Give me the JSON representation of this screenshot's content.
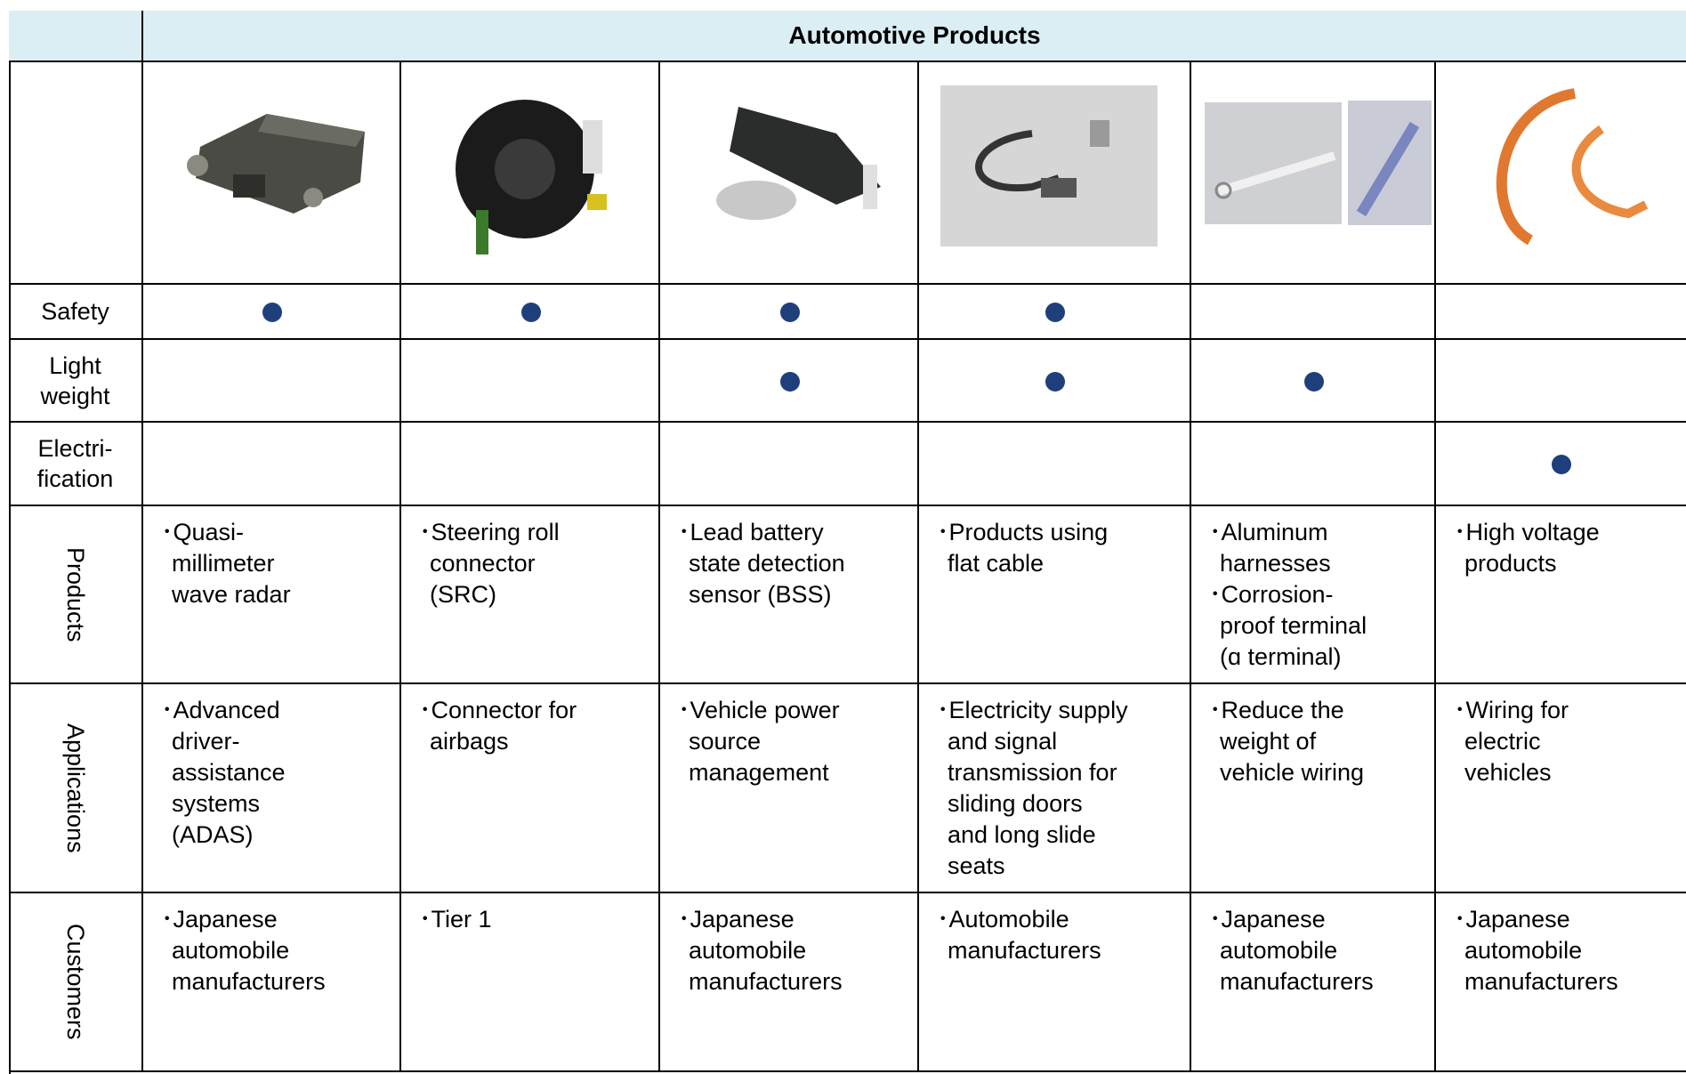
{
  "header": {
    "title": "Automotive Products"
  },
  "indicator_rows": [
    {
      "label": [
        "Safety"
      ],
      "marks": [
        true,
        true,
        true,
        true,
        false,
        false
      ]
    },
    {
      "label": [
        "Light",
        "weight"
      ],
      "marks": [
        false,
        false,
        true,
        true,
        true,
        false
      ]
    },
    {
      "label": [
        "Electri-",
        "fication"
      ],
      "marks": [
        false,
        false,
        false,
        false,
        false,
        true
      ]
    }
  ],
  "text_rows": [
    {
      "label": "Products",
      "cells": [
        [
          [
            "･Quasi-",
            "millimeter",
            "wave radar"
          ]
        ],
        [
          [
            "･Steering roll",
            "connector",
            "(SRC)"
          ]
        ],
        [
          [
            "･Lead battery",
            "state detection",
            "sensor (BSS)"
          ]
        ],
        [
          [
            "･Products using",
            "flat cable"
          ]
        ],
        [
          [
            "･Aluminum",
            "harnesses"
          ],
          [
            "･Corrosion-",
            "proof terminal",
            "(ɑ terminal)"
          ]
        ],
        [
          [
            "･High voltage",
            "products"
          ]
        ]
      ]
    },
    {
      "label": "Applications",
      "cells": [
        [
          [
            "･Advanced",
            "driver-",
            "assistance",
            "systems",
            "(ADAS)"
          ]
        ],
        [
          [
            "･Connector for",
            "airbags"
          ]
        ],
        [
          [
            "･Vehicle power",
            "source",
            "management"
          ]
        ],
        [
          [
            "･Electricity supply",
            "and signal",
            "transmission for",
            "sliding doors",
            "and long slide",
            "seats"
          ]
        ],
        [
          [
            "･Reduce the",
            "weight of",
            "vehicle wiring"
          ]
        ],
        [
          [
            "･Wiring for",
            "electric",
            "vehicles"
          ]
        ]
      ]
    },
    {
      "label": "Customers",
      "cells": [
        [
          [
            "･Japanese",
            "automobile",
            "manufacturers"
          ]
        ],
        [
          [
            "･Tier 1"
          ]
        ],
        [
          [
            "･Japanese",
            "automobile",
            "manufacturers"
          ]
        ],
        [
          [
            "･Automobile",
            "manufacturers"
          ]
        ],
        [
          [
            "･Japanese",
            "automobile",
            "manufacturers"
          ]
        ],
        [
          [
            "･Japanese",
            "automobile",
            "manufacturers"
          ]
        ]
      ]
    }
  ]
}
